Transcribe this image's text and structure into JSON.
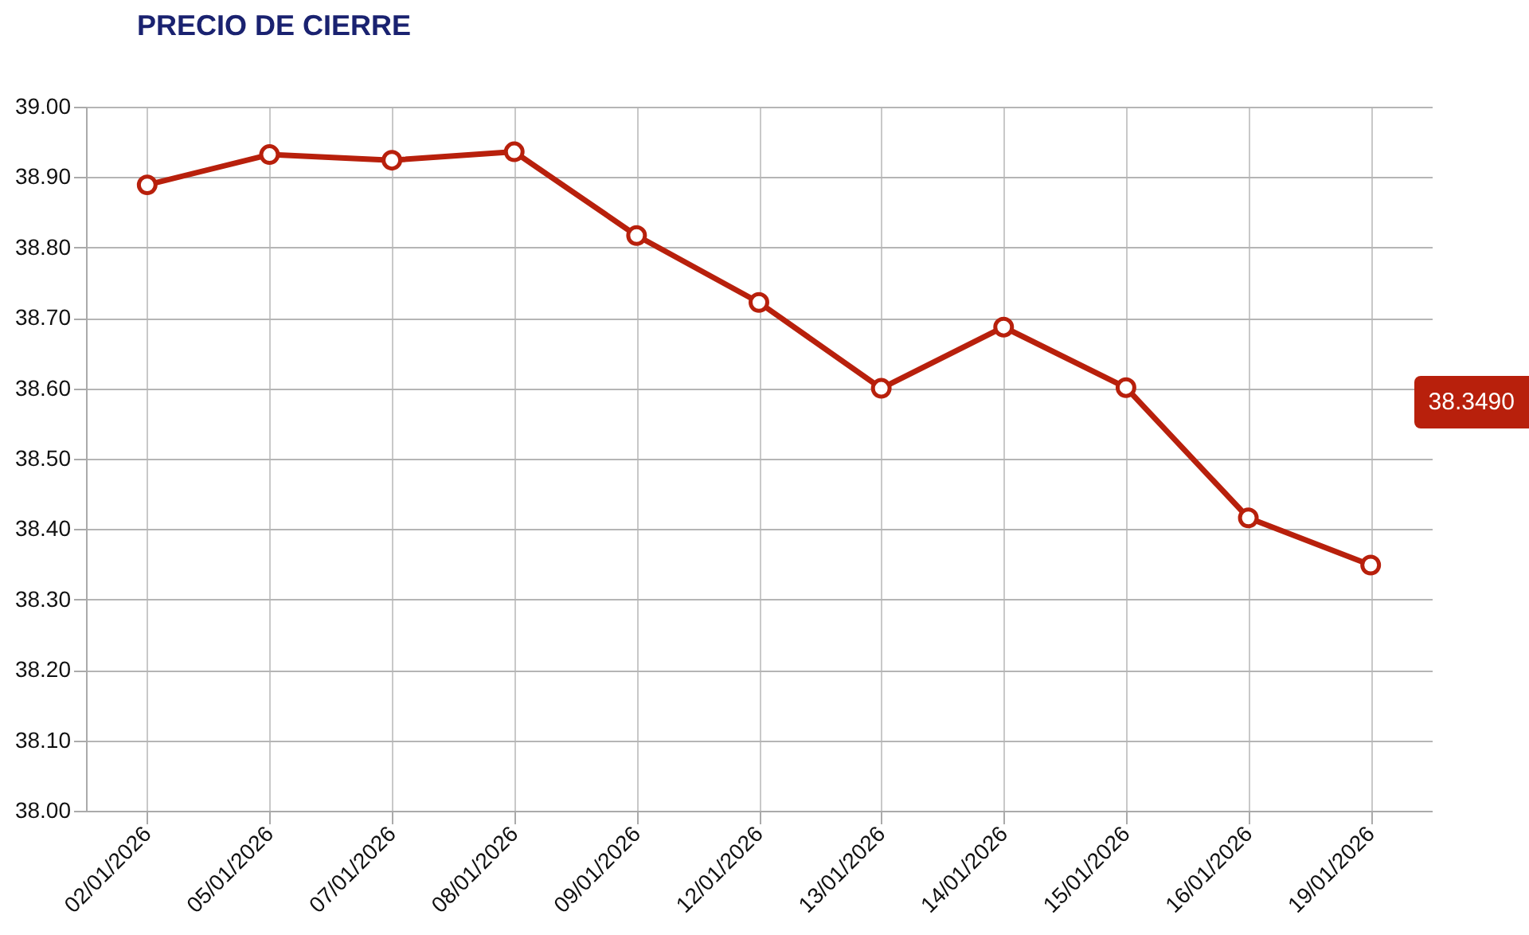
{
  "chart_data": {
    "type": "line",
    "title": "PRECIO DE CIERRE",
    "categories": [
      "02/01/2026",
      "05/01/2026",
      "07/01/2026",
      "08/01/2026",
      "09/01/2026",
      "12/01/2026",
      "13/01/2026",
      "14/01/2026",
      "15/01/2026",
      "16/01/2026",
      "19/01/2026"
    ],
    "series": [
      {
        "color": "#b8200c",
        "values": [
          38.889,
          38.932,
          38.924,
          38.936,
          38.817,
          38.722,
          38.6,
          38.687,
          38.601,
          38.416,
          38.349
        ]
      }
    ],
    "ylim": [
      38.0,
      39.0
    ],
    "yticks": [
      {
        "value": 38.0,
        "label": "38.00"
      },
      {
        "value": 38.1,
        "label": "38.10"
      },
      {
        "value": 38.2,
        "label": "38.20"
      },
      {
        "value": 38.3,
        "label": "38.30"
      },
      {
        "value": 38.4,
        "label": "38.40"
      },
      {
        "value": 38.5,
        "label": "38.50"
      },
      {
        "value": 38.6,
        "label": "38.60"
      },
      {
        "value": 38.7,
        "label": "38.70"
      },
      {
        "value": 38.8,
        "label": "38.80"
      },
      {
        "value": 38.9,
        "label": "38.90"
      },
      {
        "value": 39.0,
        "label": "39.00"
      }
    ],
    "annotations": [
      "38.3490"
    ],
    "grid": true,
    "marker": "circle",
    "legend": false
  }
}
